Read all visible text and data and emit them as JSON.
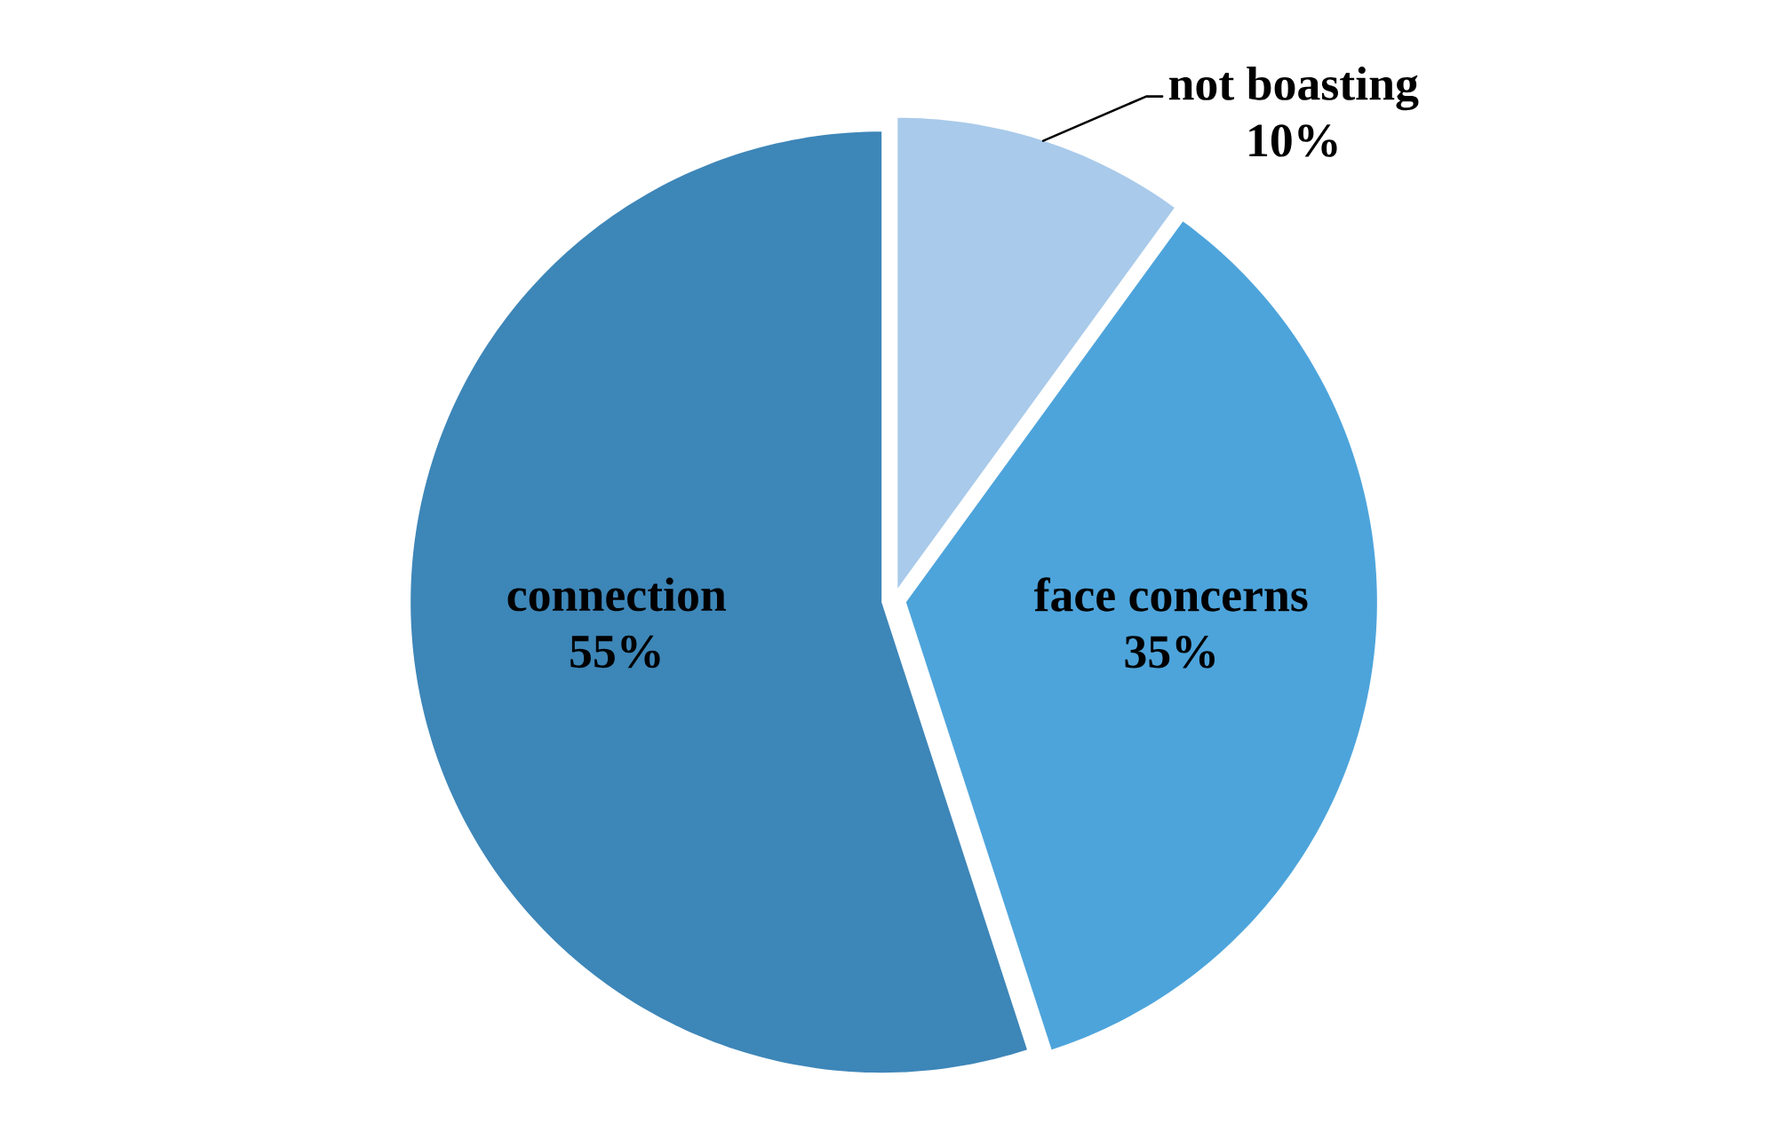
{
  "chart_data": {
    "type": "pie",
    "categories": [
      "not boasting",
      "face concerns",
      "connection"
    ],
    "values": [
      10,
      35,
      55
    ],
    "colors": [
      "#a9caea",
      "#4da4db",
      "#3d86b8"
    ],
    "value_labels": [
      "10%",
      "35%",
      "55%"
    ]
  }
}
